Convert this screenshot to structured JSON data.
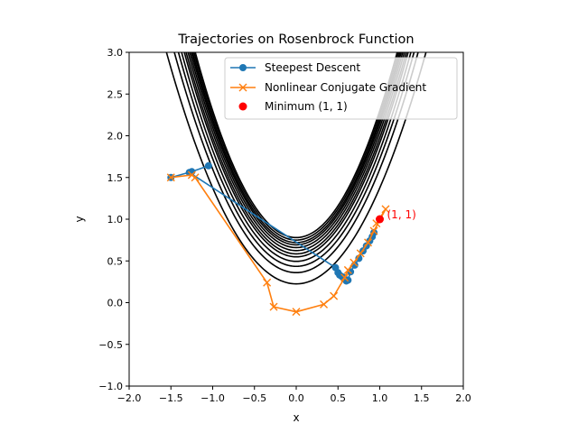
{
  "chart_data": {
    "type": "line",
    "title": "Trajectories on Rosenbrock Function",
    "xlabel": "x",
    "ylabel": "y",
    "xlim": [
      -2.0,
      2.0
    ],
    "ylim": [
      -1.0,
      3.0
    ],
    "xticks": [
      "−2.0",
      "−1.5",
      "−1.0",
      "−0.5",
      "0.0",
      "0.5",
      "1.0",
      "1.5",
      "2.0"
    ],
    "xtick_values": [
      -2.0,
      -1.5,
      -1.0,
      -0.5,
      0.0,
      0.5,
      1.0,
      1.5,
      2.0
    ],
    "yticks": [
      "−1.0",
      "−0.5",
      "0.0",
      "0.5",
      "1.0",
      "1.5",
      "2.0",
      "2.5",
      "3.0"
    ],
    "ytick_values": [
      -1.0,
      -0.5,
      0.0,
      0.5,
      1.0,
      1.5,
      2.0,
      2.5,
      3.0
    ],
    "grid": false,
    "legend_position": "top-right",
    "contour": {
      "color": "#000000",
      "levels": [
        0.75,
        1.2,
        1.45,
        1.65,
        1.83,
        1.95,
        2.08,
        2.2,
        2.31,
        2.4,
        2.5,
        2.6
      ]
    },
    "series": [
      {
        "name": "Steepest Descent",
        "color": "#1f77b4",
        "marker": "o",
        "x": [
          -1.5,
          -1.25,
          -1.05,
          -1.28,
          0.47,
          0.5,
          0.52,
          0.55,
          0.57,
          0.58,
          0.6,
          0.62,
          0.65,
          0.7,
          0.75,
          0.8,
          0.84,
          0.88,
          0.91,
          0.93
        ],
        "y": [
          1.5,
          1.57,
          1.64,
          1.56,
          0.42,
          0.36,
          0.33,
          0.31,
          0.3,
          0.28,
          0.26,
          0.27,
          0.37,
          0.45,
          0.53,
          0.62,
          0.68,
          0.74,
          0.79,
          0.84
        ]
      },
      {
        "name": "Nonlinear Conjugate Gradient",
        "color": "#ff7f0e",
        "marker": "x",
        "x": [
          -1.5,
          -1.25,
          -1.21,
          -0.35,
          -0.27,
          0.0,
          0.33,
          0.45,
          0.58,
          0.62,
          0.69,
          0.77,
          0.86,
          0.93,
          1.07,
          0.96
        ],
        "y": [
          1.5,
          1.53,
          1.5,
          0.24,
          -0.05,
          -0.11,
          -0.02,
          0.08,
          0.3,
          0.39,
          0.48,
          0.59,
          0.72,
          0.86,
          1.12,
          0.95
        ]
      }
    ],
    "minimum": {
      "name": "Minimum (1, 1)",
      "x": 1.0,
      "y": 1.0,
      "color": "#ff0000",
      "annotation": "(1, 1)"
    }
  }
}
